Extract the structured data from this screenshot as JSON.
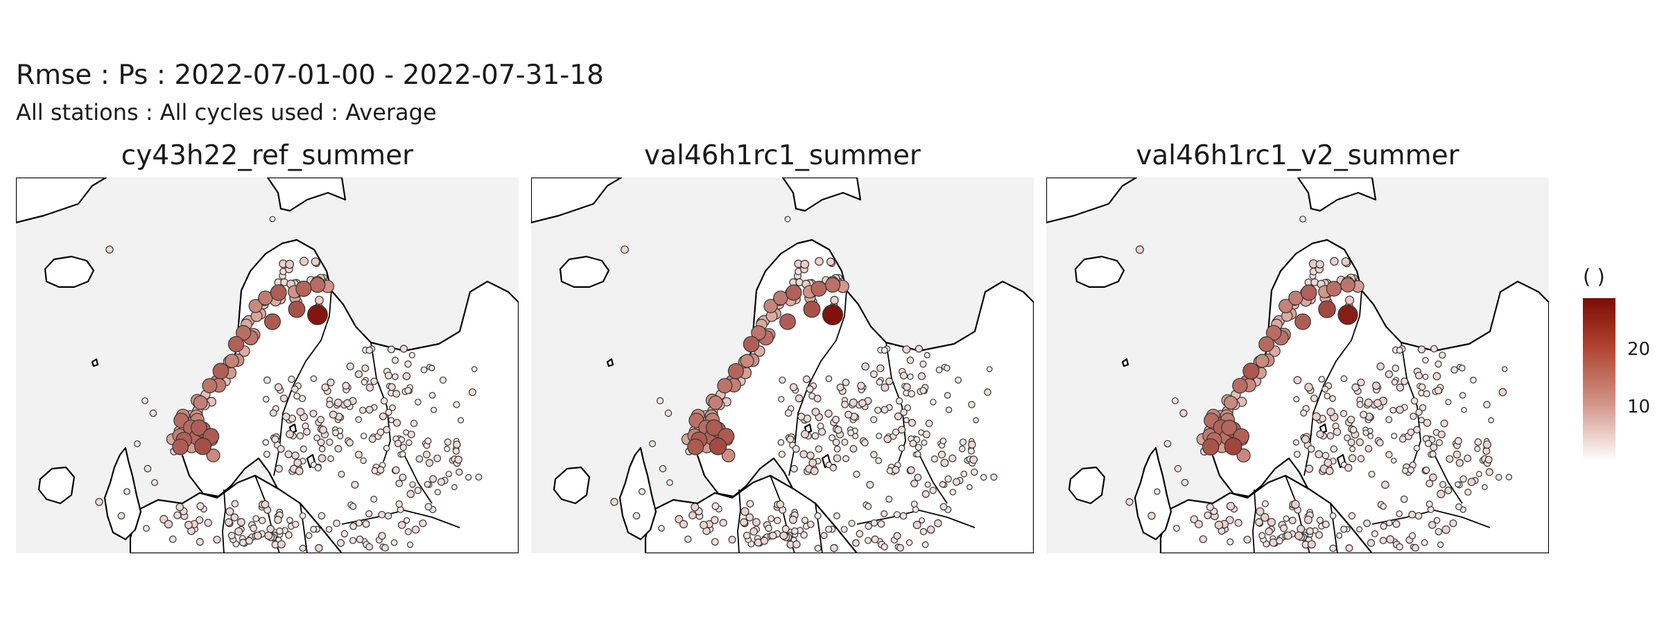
{
  "title": "Rmse : Ps : 2022-07-01-00 - 2022-07-31-18",
  "subtitle": "All stations : All cycles used : Average",
  "panels": [
    {
      "name": "cy43h22_ref_summer"
    },
    {
      "name": "val46h1rc1_summer"
    },
    {
      "name": "val46h1rc1_v2_summer"
    }
  ],
  "legend": {
    "title": "( )",
    "ticks": [
      "20",
      "10"
    ],
    "tick_values": [
      20,
      10
    ],
    "range": [
      0,
      28
    ],
    "colors": {
      "low": "#ffffff",
      "mid": "#d2958a",
      "high": "#7b0c05"
    }
  },
  "colors": {
    "sea": "#f2f2f2",
    "land": "#ffffff",
    "coast": "#000000",
    "point_stroke": "#333333"
  }
}
